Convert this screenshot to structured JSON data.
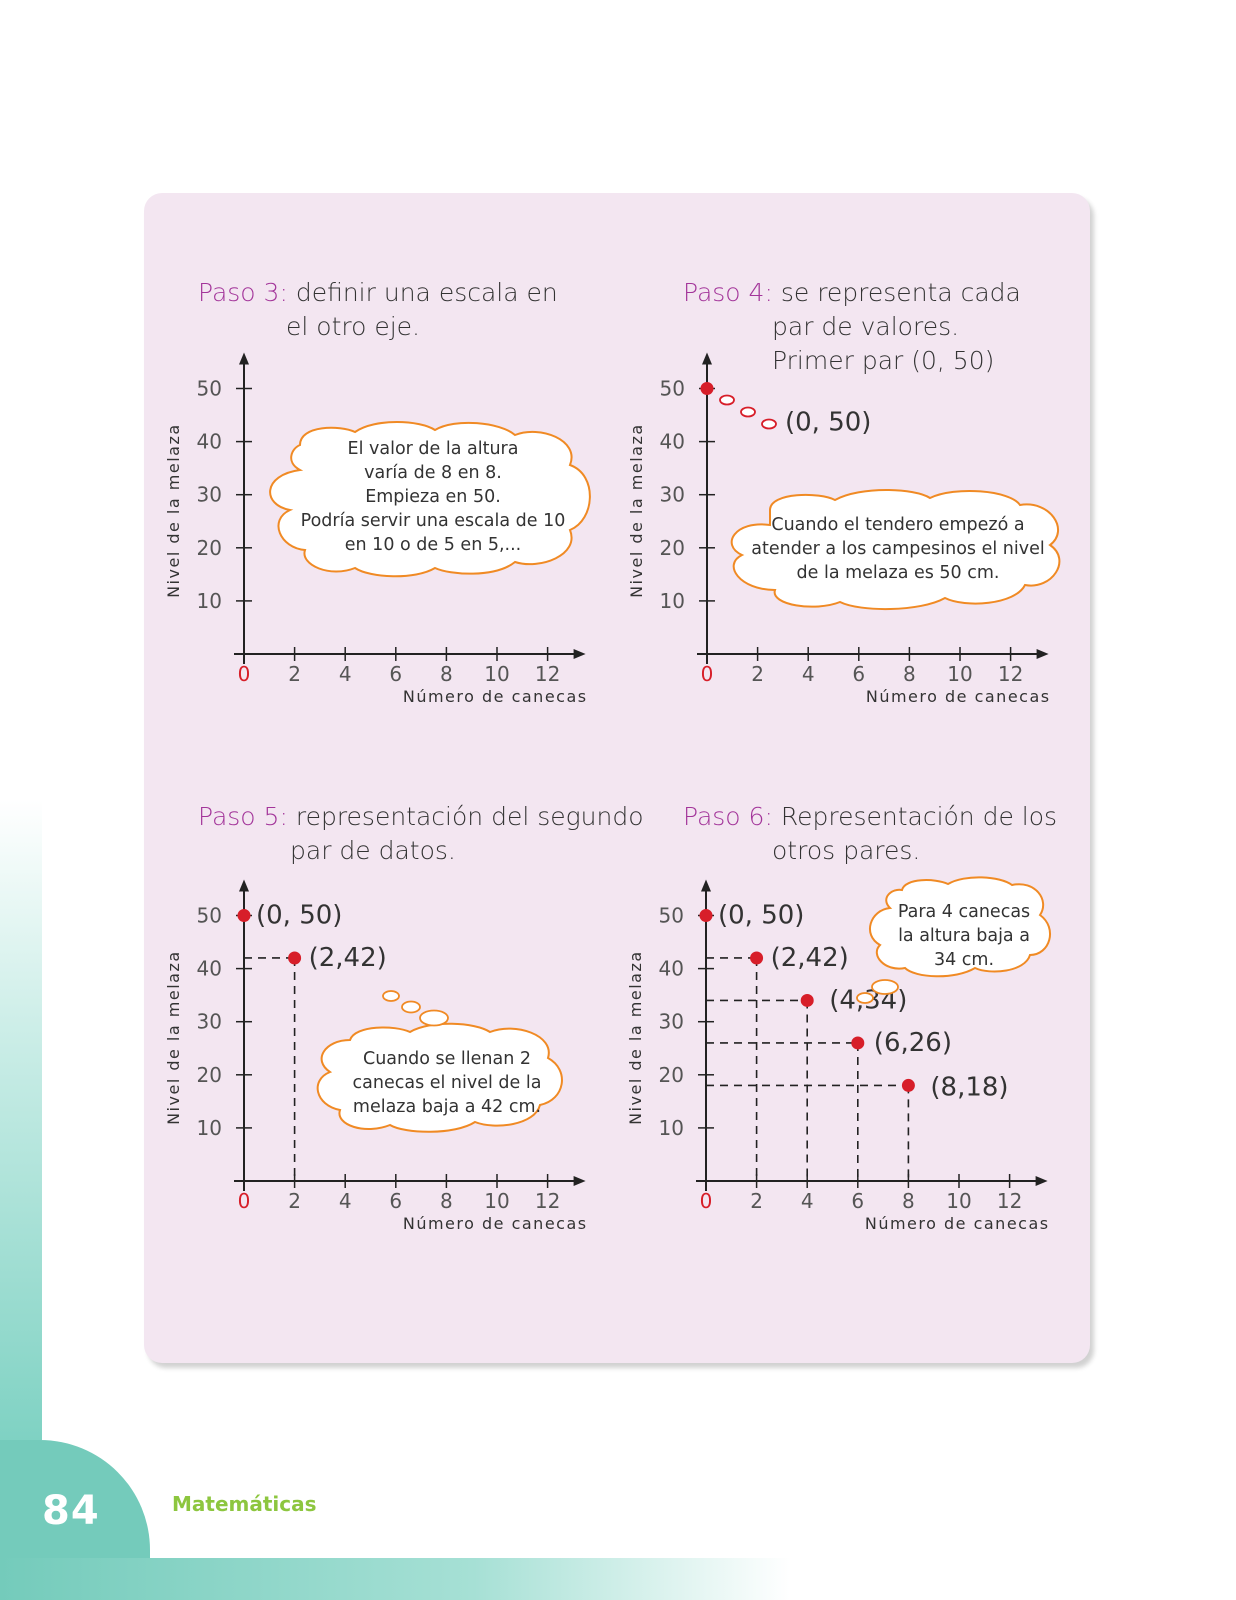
{
  "page": {
    "number": "84",
    "subject": "Matemáticas"
  },
  "colors": {
    "accent": "#a3359a",
    "point": "#d71e29",
    "bubble_border": "#f08a24",
    "panel": "#f3e6f1",
    "teal": "#74cbbb",
    "subject": "#8dc63f"
  },
  "axes": {
    "y_label": "Nivel de la melaza",
    "x_label": "Número de canecas",
    "y_ticks": [
      "10",
      "20",
      "30",
      "40",
      "50"
    ],
    "x_ticks": [
      "2",
      "4",
      "6",
      "8",
      "10",
      "12"
    ],
    "origin": "0"
  },
  "steps": [
    {
      "label": "Paso 3",
      "line1": "definir una escala en",
      "line2": "el otro eje.",
      "line3": "",
      "bubble": [
        "El valor de la altura",
        "varía de 8 en 8.",
        "Empieza en 50.",
        "Podría servir una escala de 10",
        "en 10 o de 5 en 5,..."
      ]
    },
    {
      "label": "Paso 4",
      "line1": "se representa cada",
      "line2": "par de valores.",
      "line3": "Primer par (0, 50)",
      "bubble": [
        "Cuando el tendero empezó a",
        "atender a los campesinos el nivel",
        "de la melaza es 50 cm."
      ]
    },
    {
      "label": "Paso 5",
      "line1": "representación del segundo",
      "line2": "par de datos.",
      "line3": "",
      "bubble": [
        "Cuando se llenan 2",
        "canecas el nivel de la",
        "melaza baja a 42 cm."
      ]
    },
    {
      "label": "Paso 6",
      "line1": "Representación de los",
      "line2": "otros pares.",
      "line3": "",
      "bubble": [
        "Para 4 canecas",
        "la altura baja a",
        "34 cm."
      ]
    }
  ],
  "chart_data": [
    {
      "type": "scatter",
      "title": "Paso 3",
      "xlabel": "Número de canecas",
      "ylabel": "Nivel de la melaza",
      "xlim": [
        0,
        12
      ],
      "ylim": [
        0,
        50
      ],
      "points": []
    },
    {
      "type": "scatter",
      "title": "Paso 4",
      "xlabel": "Número de canecas",
      "ylabel": "Nivel de la melaza",
      "xlim": [
        0,
        12
      ],
      "ylim": [
        0,
        50
      ],
      "points": [
        {
          "x": 0,
          "y": 50,
          "label": "(0, 50)"
        }
      ]
    },
    {
      "type": "scatter",
      "title": "Paso 5",
      "xlabel": "Número de canecas",
      "ylabel": "Nivel de la melaza",
      "xlim": [
        0,
        12
      ],
      "ylim": [
        0,
        50
      ],
      "points": [
        {
          "x": 0,
          "y": 50,
          "label": "(0, 50)"
        },
        {
          "x": 2,
          "y": 42,
          "label": "(2,42)"
        }
      ]
    },
    {
      "type": "scatter",
      "title": "Paso 6",
      "xlabel": "Número de canecas",
      "ylabel": "Nivel de la melaza",
      "xlim": [
        0,
        12
      ],
      "ylim": [
        0,
        50
      ],
      "points": [
        {
          "x": 0,
          "y": 50,
          "label": "(0, 50)"
        },
        {
          "x": 2,
          "y": 42,
          "label": "(2,42)"
        },
        {
          "x": 4,
          "y": 34,
          "label": "(4,34)"
        },
        {
          "x": 6,
          "y": 26,
          "label": "(6,26)"
        },
        {
          "x": 8,
          "y": 18,
          "label": "(8,18)"
        }
      ]
    }
  ]
}
